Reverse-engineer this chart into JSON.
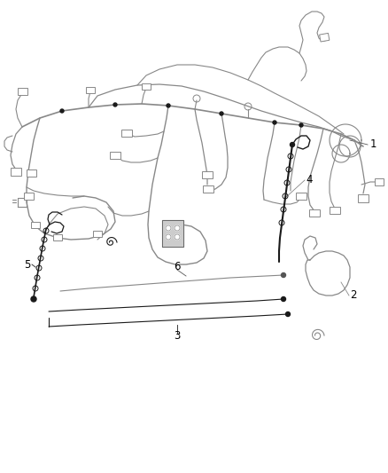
{
  "background_color": "#ffffff",
  "label_color": "#000000",
  "line_color": "#888888",
  "dark_line_color": "#1a1a1a",
  "fig_width": 4.38,
  "fig_height": 5.33,
  "dpi": 100,
  "label_fontsize": 8.5
}
